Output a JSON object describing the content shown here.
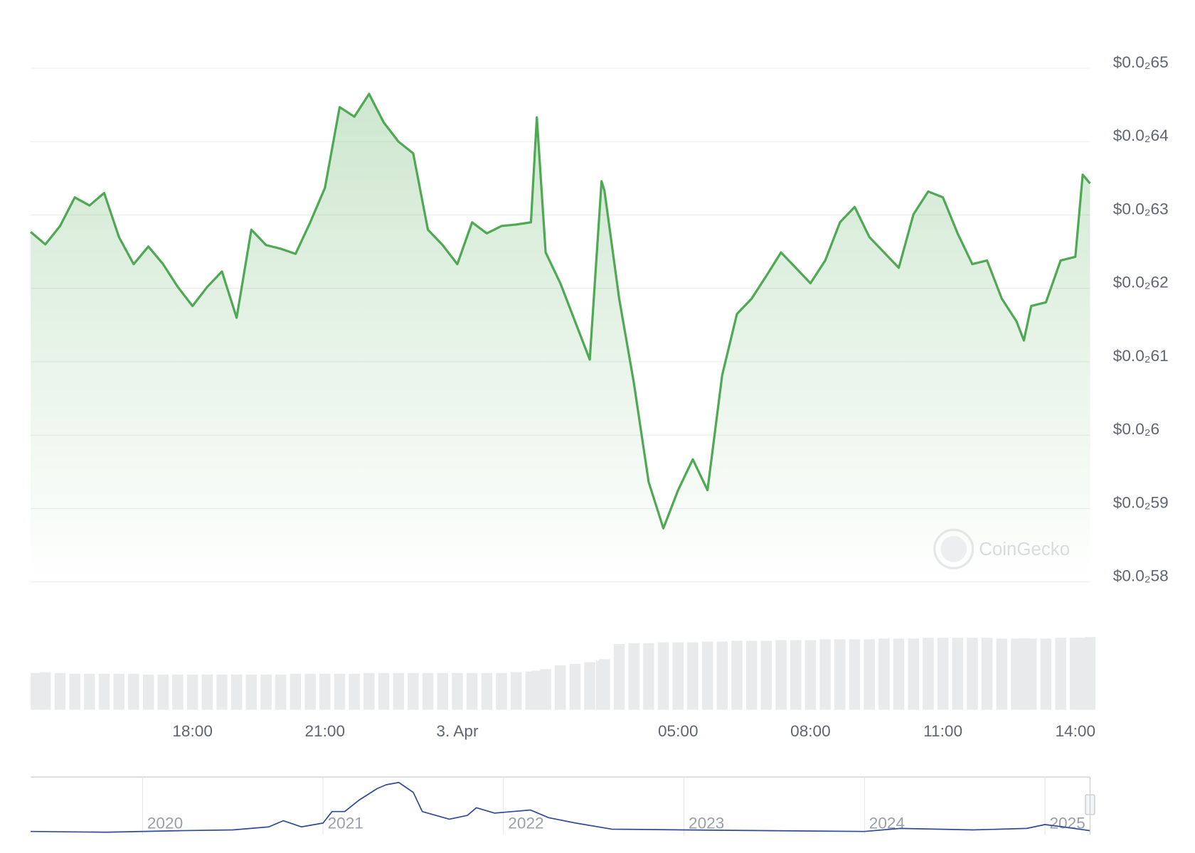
{
  "chart_data": [
    {
      "type": "line",
      "x": [
        "2. Apr 14:20",
        "2. Apr 14:40",
        "2. Apr 15:00",
        "2. Apr 15:20",
        "2. Apr 15:40",
        "2. Apr 16:00",
        "2. Apr 16:20",
        "2. Apr 16:40",
        "2. Apr 17:00",
        "2. Apr 17:20",
        "2. Apr 17:40",
        "2. Apr 18:00",
        "2. Apr 18:20",
        "2. Apr 18:40",
        "2. Apr 19:00",
        "2. Apr 19:20",
        "2. Apr 19:40",
        "2. Apr 20:00",
        "2. Apr 20:20",
        "2. Apr 20:40",
        "2. Apr 21:00",
        "2. Apr 21:20",
        "2. Apr 21:40",
        "2. Apr 22:00",
        "2. Apr 22:20",
        "2. Apr 22:40",
        "2. Apr 23:00",
        "2. Apr 23:20",
        "2. Apr 23:40",
        "3. Apr 00:00",
        "3. Apr 00:20",
        "3. Apr 00:40",
        "3. Apr 01:00",
        "3. Apr 01:20",
        "3. Apr 01:40",
        "3. Apr 01:48",
        "3. Apr 02:00",
        "3. Apr 02:20",
        "3. Apr 02:40",
        "3. Apr 03:00",
        "3. Apr 03:16",
        "3. Apr 03:20",
        "3. Apr 03:40",
        "3. Apr 04:00",
        "3. Apr 04:20",
        "3. Apr 04:40",
        "3. Apr 05:00",
        "3. Apr 05:20",
        "3. Apr 05:40",
        "3. Apr 06:00",
        "3. Apr 06:20",
        "3. Apr 06:40",
        "3. Apr 07:00",
        "3. Apr 07:20",
        "3. Apr 07:40",
        "3. Apr 08:00",
        "3. Apr 08:20",
        "3. Apr 08:40",
        "3. Apr 09:00",
        "3. Apr 09:20",
        "3. Apr 09:40",
        "3. Apr 10:00",
        "3. Apr 10:20",
        "3. Apr 10:40",
        "3. Apr 11:00",
        "3. Apr 11:20",
        "3. Apr 11:40",
        "3. Apr 12:00",
        "3. Apr 12:20",
        "3. Apr 12:40",
        "3. Apr 12:50",
        "3. Apr 13:00",
        "3. Apr 13:20",
        "3. Apr 13:40",
        "3. Apr 14:00",
        "3. Apr 14:10",
        "3. Apr 14:20"
      ],
      "series": [
        {
          "color": "#4fa853",
          "values": [
            0.006277,
            0.00626,
            0.006285,
            0.006324,
            0.006313,
            0.00633,
            0.00627,
            0.006233,
            0.006257,
            0.006233,
            0.006202,
            0.006176,
            0.006202,
            0.006223,
            0.00616,
            0.00628,
            0.006259,
            0.006254,
            0.006247,
            0.00629,
            0.006337,
            0.006447,
            0.006434,
            0.006465,
            0.006426,
            0.0064,
            0.006384,
            0.00628,
            0.006259,
            0.006233,
            0.00629,
            0.006275,
            0.006285,
            0.006287,
            0.00629,
            0.006433,
            0.006249,
            0.006207,
            0.006155,
            0.006103,
            0.006346,
            0.006333,
            0.006186,
            0.006071,
            0.005936,
            0.005873,
            0.005925,
            0.005967,
            0.005925,
            0.006082,
            0.006165,
            0.006186,
            0.006217,
            0.006249,
            0.006228,
            0.006207,
            0.006238,
            0.00629,
            0.006311,
            0.00627,
            0.006249,
            0.006228,
            0.006301,
            0.006332,
            0.006324,
            0.006275,
            0.006233,
            0.006238,
            0.006186,
            0.006155,
            0.006129,
            0.006176,
            0.006181,
            0.006238,
            0.006243,
            0.006355,
            0.006343
          ]
        }
      ],
      "volume": {
        "color": "#e9eaec",
        "ylim": [
          0,
          100
        ],
        "values": [
          48,
          49,
          48,
          47,
          47,
          47,
          47,
          47,
          46,
          46,
          46,
          46,
          46,
          46,
          46,
          46,
          46,
          46,
          47,
          47,
          47,
          47,
          47,
          48,
          48,
          48,
          48,
          48,
          48,
          48,
          48,
          48,
          48,
          49,
          50,
          51,
          53,
          58,
          60,
          62,
          64,
          66,
          86,
          87,
          87,
          88,
          88,
          88,
          89,
          89,
          90,
          90,
          90,
          91,
          91,
          91,
          92,
          92,
          92,
          92,
          93,
          93,
          93,
          94,
          94,
          94,
          94,
          94,
          93,
          93,
          93,
          93,
          93,
          94,
          94,
          94,
          95
        ]
      },
      "xlim": [
        "2. Apr 14:20",
        "3. Apr 14:20"
      ],
      "xticks": [
        {
          "value": "2. Apr 18:00",
          "label": "18:00"
        },
        {
          "value": "2. Apr 21:00",
          "label": "21:00"
        },
        {
          "value": "3. Apr 00:00",
          "label": "3. Apr"
        },
        {
          "value": "3. Apr 05:00",
          "label": "05:00"
        },
        {
          "value": "3. Apr 08:00",
          "label": "08:00"
        },
        {
          "value": "3. Apr 11:00",
          "label": "11:00"
        },
        {
          "value": "3. Apr 14:00",
          "label": "14:00"
        }
      ],
      "ylim": [
        0.0058,
        0.0065
      ],
      "yticks": [
        {
          "value": 0.0058,
          "label": "$0.0₂58"
        },
        {
          "value": 0.0059,
          "label": "$0.0₂59"
        },
        {
          "value": 0.006,
          "label": "$0.0₂6"
        },
        {
          "value": 0.0061,
          "label": "$0.0₂61"
        },
        {
          "value": 0.0062,
          "label": "$0.0₂62"
        },
        {
          "value": 0.0063,
          "label": "$0.0₂63"
        },
        {
          "value": 0.0064,
          "label": "$0.0₂64"
        },
        {
          "value": 0.0065,
          "label": "$0.0₂65"
        }
      ],
      "grid": true,
      "watermark": "CoinGecko"
    },
    {
      "type": "line",
      "x": [
        2019.38,
        2019.8,
        2020.2,
        2020.5,
        2020.7,
        2020.78,
        2020.88,
        2021.0,
        2021.05,
        2021.12,
        2021.2,
        2021.3,
        2021.35,
        2021.42,
        2021.5,
        2021.55,
        2021.7,
        2021.8,
        2021.85,
        2021.95,
        2022.05,
        2022.15,
        2022.25,
        2022.4,
        2022.6,
        2023.0,
        2023.5,
        2024.0,
        2024.2,
        2024.6,
        2024.9,
        2025.0,
        2025.1,
        2025.25
      ],
      "series": [
        {
          "color": "#2f4b9a",
          "values": [
            0.0053,
            0.004,
            0.0067,
            0.008,
            0.0133,
            0.024,
            0.0133,
            0.02,
            0.04,
            0.04,
            0.06,
            0.08,
            0.0867,
            0.0907,
            0.0733,
            0.04,
            0.0267,
            0.0333,
            0.0467,
            0.0373,
            0.04,
            0.0427,
            0.0293,
            0.02,
            0.0093,
            0.008,
            0.0067,
            0.0053,
            0.0107,
            0.008,
            0.0107,
            0.0173,
            0.0133,
            0.0067
          ]
        }
      ],
      "xlim": [
        2019.38,
        2025.25
      ],
      "xticks": [
        2020,
        2021,
        2022,
        2023,
        2024,
        2025
      ],
      "ylim": [
        0,
        0.1
      ]
    }
  ]
}
